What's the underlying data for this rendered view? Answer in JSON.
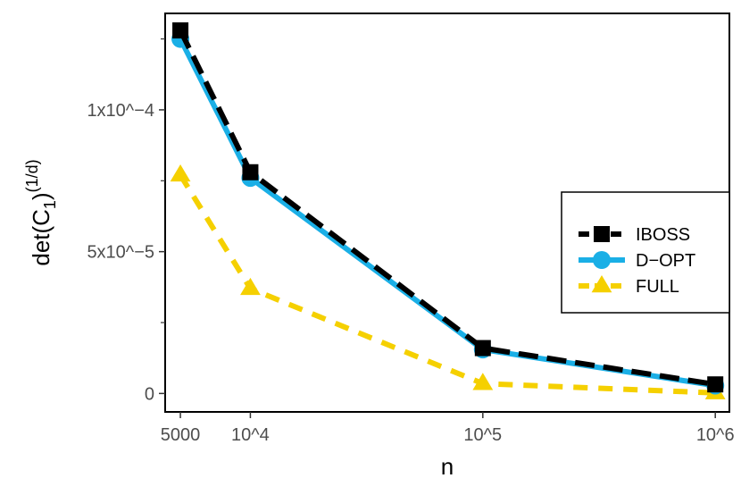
{
  "chart_data": {
    "type": "line",
    "title": "",
    "xlabel": "n",
    "ylabel": "det(C_1)^(1/d)",
    "ylabel_parts": {
      "main": "det(C",
      "sub": "1",
      "close": ")",
      "sup": "(1/d)"
    },
    "x_scale": "log10",
    "x": [
      5000,
      10000,
      100000,
      1000000
    ],
    "x_tick_labels": [
      "5000",
      "10^4",
      "10^5",
      "10^6"
    ],
    "xlim": [
      4300,
      1150000
    ],
    "y_ticks": [
      0,
      5e-05,
      0.0001
    ],
    "y_minor_ticks": [
      2.5e-05,
      7.5e-05,
      0.000125
    ],
    "y_tick_labels": [
      "0",
      "5x10^−5",
      "1x10^−4"
    ],
    "ylim": [
      -6.5e-06,
      0.000134
    ],
    "grid": false,
    "legend_position": "right",
    "series": [
      {
        "name": "FULL",
        "color": "#F5D000",
        "marker": "triangle",
        "line": "dashed",
        "values": [
          7.7e-05,
          3.7e-05,
          3.5e-06,
          2e-07
        ]
      },
      {
        "name": "D−OPT",
        "color": "#1AAFE6",
        "marker": "circle",
        "line": "solid",
        "values": [
          0.000125,
          7.6e-05,
          1.55e-05,
          2.8e-06
        ]
      },
      {
        "name": "IBOSS",
        "color": "#000000",
        "marker": "square",
        "line": "dashed",
        "values": [
          0.000128,
          7.8e-05,
          1.6e-05,
          3.2e-06
        ]
      }
    ],
    "legend_order": [
      "IBOSS",
      "D−OPT",
      "FULL"
    ]
  }
}
